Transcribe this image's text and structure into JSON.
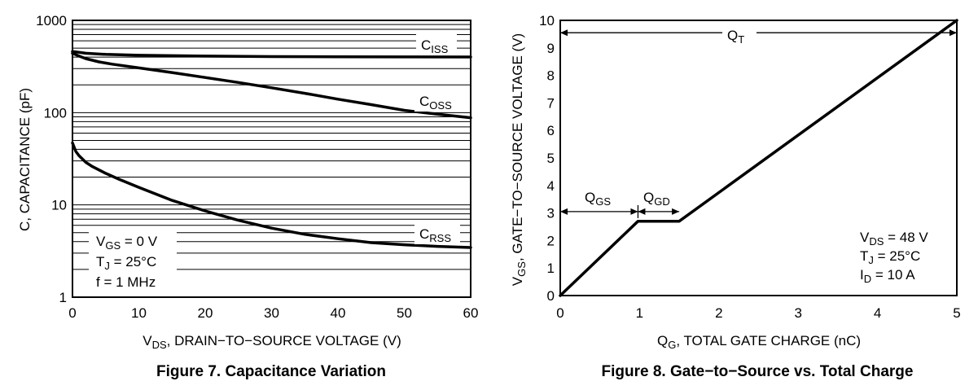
{
  "chart_data": [
    {
      "type": "line",
      "caption": "Figure 7. Capacitance Variation",
      "xlabel_main": "DS",
      "xlabel_prefix": "V",
      "xlabel_suffix": ", DRAIN−TO−SOURCE VOLTAGE (V)",
      "ylabel": "C, CAPACITANCE (pF)",
      "yscale": "log",
      "xlim": [
        0,
        60
      ],
      "ylim": [
        1,
        1000
      ],
      "xticks": [
        "0",
        "10",
        "20",
        "30",
        "40",
        "50",
        "60"
      ],
      "yticks": [
        "1",
        "10",
        "100",
        "1000"
      ],
      "series": [
        {
          "name": "CISS",
          "label_main": "C",
          "label_sub": "ISS",
          "x": [
            0,
            2,
            5,
            10,
            20,
            30,
            40,
            50,
            60
          ],
          "y": [
            460,
            440,
            428,
            418,
            410,
            405,
            403,
            402,
            401
          ]
        },
        {
          "name": "COSS",
          "label_main": "C",
          "label_sub": "OSS",
          "x": [
            0,
            1,
            2,
            4,
            6,
            10,
            15,
            20,
            25,
            30,
            35,
            40,
            45,
            50,
            55,
            60
          ],
          "y": [
            440,
            410,
            385,
            355,
            335,
            305,
            272,
            240,
            212,
            186,
            162,
            140,
            122,
            106,
            96,
            88
          ]
        },
        {
          "name": "CRSS",
          "label_main": "C",
          "label_sub": "RSS",
          "x": [
            0,
            0.5,
            1,
            2,
            3,
            5,
            7,
            10,
            15,
            20,
            25,
            30,
            35,
            40,
            45,
            50,
            55,
            60
          ],
          "y": [
            47,
            38,
            34,
            29,
            26,
            22,
            19,
            15.5,
            11.2,
            8.6,
            6.8,
            5.6,
            4.8,
            4.3,
            3.9,
            3.7,
            3.55,
            3.45
          ]
        }
      ],
      "conditions": [
        {
          "main": "V",
          "sub": "GS",
          "rest": " = 0 V"
        },
        {
          "main": "T",
          "sub": "J",
          "rest": " = 25°C"
        },
        {
          "main": "f = 1 MHz",
          "sub": "",
          "rest": ""
        }
      ]
    },
    {
      "type": "line",
      "caption": "Figure 8. Gate−to−Source vs. Total Charge",
      "xlabel_prefix": "Q",
      "xlabel_main": "G",
      "xlabel_suffix": ", TOTAL GATE CHARGE (nC)",
      "ylabel_prefix": "V",
      "ylabel_sub": "GS",
      "ylabel_suffix": ", GATE−TO−SOURCE VOLTAGE (V)",
      "xlim": [
        0,
        5
      ],
      "ylim": [
        0,
        10
      ],
      "xticks": [
        "0",
        "1",
        "2",
        "3",
        "4",
        "5"
      ],
      "yticks": [
        "0",
        "1",
        "2",
        "3",
        "4",
        "5",
        "6",
        "7",
        "8",
        "9",
        "10"
      ],
      "series": [
        {
          "name": "VGS",
          "x": [
            0,
            0.98,
            1.5,
            5
          ],
          "y": [
            0,
            2.7,
            2.7,
            10
          ]
        }
      ],
      "annotations": [
        {
          "main": "Q",
          "sub": "T",
          "from": 0,
          "to": 5,
          "at_v": 9.55
        },
        {
          "main": "Q",
          "sub": "GS",
          "from": 0,
          "to": 0.98,
          "at_v": 3.05
        },
        {
          "main": "Q",
          "sub": "GD",
          "from": 0.98,
          "to": 1.5,
          "at_v": 3.05
        }
      ],
      "conditions": [
        {
          "main": "V",
          "sub": "DS",
          "rest": " = 48 V"
        },
        {
          "main": "T",
          "sub": "J",
          "rest": " = 25°C"
        },
        {
          "main": "I",
          "sub": "D",
          "rest": " = 10 A"
        }
      ]
    }
  ]
}
